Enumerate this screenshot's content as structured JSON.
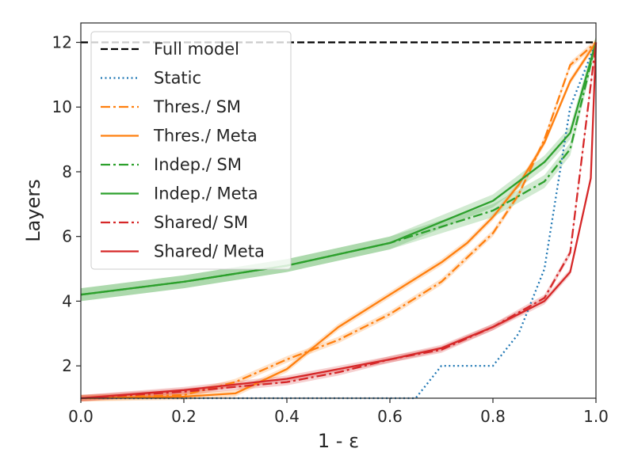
{
  "chart_data": {
    "type": "line",
    "title": "",
    "xlabel": "1 - ε",
    "ylabel": "Layers",
    "xlim": [
      0.0,
      1.0
    ],
    "ylim": [
      1.0,
      12.6
    ],
    "xticks": [
      0.0,
      0.2,
      0.4,
      0.6,
      0.8,
      1.0
    ],
    "xtick_labels": [
      "0.0",
      "0.2",
      "0.4",
      "0.6",
      "0.8",
      "1.0"
    ],
    "yticks": [
      2,
      4,
      6,
      8,
      10,
      12
    ],
    "ytick_labels": [
      "2",
      "4",
      "6",
      "8",
      "10",
      "12"
    ],
    "grid": false,
    "legend_position": "top-left",
    "series": [
      {
        "name": "Full model",
        "color": "#000000",
        "style": "dashed",
        "x": [
          0.0,
          1.0
        ],
        "y": [
          12,
          12
        ]
      },
      {
        "name": "Static",
        "color": "#1f77b4",
        "style": "dotted",
        "x": [
          0.0,
          0.65,
          0.7,
          0.8,
          0.85,
          0.9,
          0.95,
          1.0
        ],
        "y": [
          1,
          1,
          2,
          2,
          3,
          5,
          10,
          12
        ]
      },
      {
        "name": "Thres./ SM",
        "color": "#ff7f0e",
        "style": "dashdot",
        "x": [
          0.0,
          0.2,
          0.3,
          0.4,
          0.5,
          0.6,
          0.7,
          0.8,
          0.85,
          0.9,
          0.95,
          1.0
        ],
        "y": [
          1.0,
          1.1,
          1.5,
          2.2,
          2.8,
          3.6,
          4.6,
          6.1,
          7.3,
          9.0,
          11.3,
          12.0
        ],
        "band": 0.1
      },
      {
        "name": "Thres./ Meta",
        "color": "#ff7f0e",
        "style": "solid",
        "x": [
          0.0,
          0.2,
          0.3,
          0.4,
          0.5,
          0.6,
          0.7,
          0.75,
          0.8,
          0.85,
          0.9,
          0.95,
          1.0
        ],
        "y": [
          1.0,
          1.05,
          1.15,
          1.9,
          3.2,
          4.2,
          5.2,
          5.8,
          6.6,
          7.6,
          8.9,
          10.8,
          12.0
        ],
        "band": 0.1
      },
      {
        "name": "Indep./ SM",
        "color": "#2ca02c",
        "style": "dashdot",
        "x": [
          0.0,
          0.2,
          0.4,
          0.6,
          0.8,
          0.9,
          0.95,
          1.0
        ],
        "y": [
          4.2,
          4.6,
          5.1,
          5.8,
          6.8,
          7.7,
          8.7,
          12.0
        ],
        "band": 0.2
      },
      {
        "name": "Indep./ Meta",
        "color": "#2ca02c",
        "style": "solid",
        "x": [
          0.0,
          0.2,
          0.4,
          0.6,
          0.8,
          0.9,
          0.95,
          1.0
        ],
        "y": [
          4.2,
          4.6,
          5.1,
          5.8,
          7.1,
          8.3,
          9.2,
          12.0
        ],
        "band": 0.2
      },
      {
        "name": "Shared/ SM",
        "color": "#d62728",
        "style": "dashdot",
        "x": [
          0.0,
          0.2,
          0.4,
          0.5,
          0.6,
          0.7,
          0.8,
          0.9,
          0.95,
          1.0
        ],
        "y": [
          1.0,
          1.2,
          1.5,
          1.8,
          2.2,
          2.5,
          3.2,
          4.1,
          5.5,
          12.0
        ],
        "band": 0.1
      },
      {
        "name": "Shared/ Meta",
        "color": "#d62728",
        "style": "solid",
        "x": [
          0.0,
          0.2,
          0.4,
          0.5,
          0.6,
          0.7,
          0.8,
          0.9,
          0.95,
          0.99,
          1.0
        ],
        "y": [
          1.0,
          1.25,
          1.6,
          1.9,
          2.2,
          2.55,
          3.2,
          4.0,
          4.9,
          7.8,
          12.0
        ],
        "band": 0.1
      }
    ]
  }
}
